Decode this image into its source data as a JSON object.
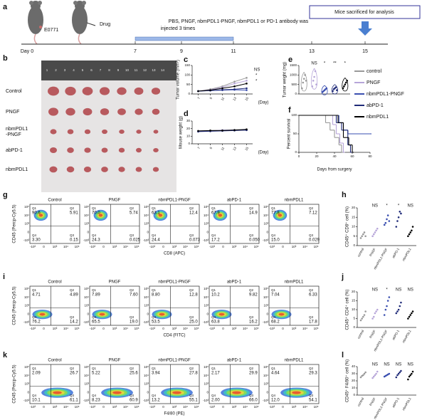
{
  "panel_letters": [
    "a",
    "b",
    "c",
    "d",
    "e",
    "f",
    "g",
    "h",
    "i",
    "j",
    "k",
    "l"
  ],
  "timeline": {
    "cell_line": "E0771",
    "drug": "Drug",
    "day0": "Day 0",
    "days": [
      7,
      9,
      11,
      13,
      15
    ],
    "treatment": [
      "PBS, PNGF, nbmPDL1-PNGF, nbmPDL1 or PD-1 antibody was",
      "injected 3 times"
    ],
    "endpoint": "Mice sacrificed for analysis"
  },
  "photo": {
    "ruler": [
      1,
      2,
      3,
      4,
      5,
      6,
      7,
      8,
      9,
      10,
      11,
      12,
      13,
      14
    ],
    "rows": [
      [
        "Control"
      ],
      [
        "PNGF"
      ],
      [
        "nbmPDL1",
        "-PNGF"
      ],
      [
        "abPD-1"
      ],
      [
        "nbmPDL1"
      ]
    ]
  },
  "chart_data": [
    {
      "type": "line",
      "ylabel": "Tumor volume (mm³)",
      "xlabel": "(Day)",
      "x": [
        7,
        9,
        11,
        13,
        15
      ],
      "xlim": [
        6,
        16
      ],
      "xticks": [
        7,
        9,
        11,
        13,
        15
      ],
      "ylim": [
        0,
        150
      ],
      "yticks": [
        0,
        50,
        100,
        150
      ],
      "annotations": [
        "NS",
        "*",
        "*"
      ],
      "series": [
        {
          "name": "control",
          "color": "#999999",
          "values": [
            15,
            25,
            40,
            65,
            85
          ]
        },
        {
          "name": "PNGF",
          "color": "#b7a6d9",
          "values": [
            15,
            22,
            35,
            55,
            70
          ]
        },
        {
          "name": "nbmPDL1-PNGF",
          "color": "#3a4fb0",
          "values": [
            15,
            18,
            20,
            22,
            20
          ]
        },
        {
          "name": "abPD-1",
          "color": "#1f2a78",
          "values": [
            15,
            18,
            22,
            25,
            30
          ]
        },
        {
          "name": "nbmPDL1",
          "color": "#000000",
          "values": [
            15,
            20,
            30,
            40,
            55
          ]
        }
      ]
    },
    {
      "type": "line",
      "ylabel": "Mouse weight (g)",
      "xlabel": "(Day)",
      "x": [
        7,
        9,
        11,
        13,
        15
      ],
      "xlim": [
        6,
        16
      ],
      "xticks": [
        7,
        9,
        11,
        13,
        15
      ],
      "ylim": [
        0,
        30
      ],
      "yticks": [
        0,
        10,
        20,
        30
      ],
      "series": [
        {
          "color": "#999999",
          "values": [
            17,
            17.5,
            18,
            18.5,
            19
          ]
        },
        {
          "color": "#b7a6d9",
          "values": [
            17,
            17,
            18,
            18,
            18.5
          ]
        },
        {
          "color": "#3a4fb0",
          "values": [
            16.5,
            17,
            17.5,
            18,
            18
          ]
        },
        {
          "color": "#1f2a78",
          "values": [
            16,
            16.5,
            17,
            17.5,
            18
          ]
        },
        {
          "color": "#000000",
          "values": [
            17,
            17.5,
            17.5,
            18,
            19
          ]
        }
      ]
    },
    {
      "type": "violin",
      "ylabel": "Tumor weight (mg)",
      "ylim": [
        0,
        1500
      ],
      "yticks": [
        0,
        500,
        1000,
        1500
      ],
      "annotations": [
        null,
        "NS",
        "*",
        "**",
        "*"
      ],
      "series": [
        {
          "color": "#999999",
          "values": [
            300,
            600,
            800,
            1000,
            700
          ]
        },
        {
          "color": "#b7a6d9",
          "values": [
            400,
            700,
            900,
            1200,
            500
          ]
        },
        {
          "color": "#3a4fb0",
          "values": [
            100,
            150,
            200,
            250,
            300
          ]
        },
        {
          "color": "#1f2a78",
          "values": [
            150,
            250,
            300,
            350,
            200
          ]
        },
        {
          "color": "#000000",
          "values": [
            300,
            400,
            500,
            600,
            700
          ]
        }
      ]
    },
    {
      "type": "step",
      "ylabel": "Percent survival",
      "xlabel": "Days from surgery",
      "xlim": [
        0,
        80
      ],
      "xticks": [
        0,
        20,
        40,
        60,
        80
      ],
      "ylim": [
        0,
        100
      ],
      "yticks": [
        0,
        50,
        100
      ],
      "series": [
        {
          "color": "#999999",
          "x": [
            0,
            30,
            35,
            40,
            45,
            48
          ],
          "values": [
            100,
            80,
            60,
            40,
            20,
            0
          ]
        },
        {
          "color": "#b7a6d9",
          "x": [
            0,
            38,
            42,
            46,
            50
          ],
          "values": [
            100,
            75,
            50,
            25,
            0
          ]
        },
        {
          "color": "#3a4fb0",
          "x": [
            0,
            45,
            50,
            55,
            80
          ],
          "values": [
            100,
            80,
            60,
            50,
            50
          ]
        },
        {
          "color": "#1f2a78",
          "x": [
            0,
            42,
            48,
            55,
            58
          ],
          "values": [
            100,
            80,
            60,
            20,
            0
          ]
        },
        {
          "color": "#000000",
          "x": [
            0,
            44,
            50,
            56,
            60
          ],
          "values": [
            100,
            80,
            40,
            20,
            0
          ]
        }
      ]
    },
    {
      "type": "strip",
      "ylabel": "CD45⁺ CD8⁺ cell (%)",
      "ylim": [
        0,
        20
      ],
      "yticks": [
        0,
        5,
        10,
        15,
        20
      ],
      "categories": [
        "control",
        "PNGF",
        "nbmPDL1-PNGF",
        "abPD-1",
        "nbmPDL1"
      ],
      "annotations": [
        null,
        "NS",
        "*",
        "*",
        "NS"
      ],
      "series": [
        {
          "color": "#999999",
          "values": [
            4,
            5,
            6,
            7,
            5
          ]
        },
        {
          "color": "#b7a6d9",
          "values": [
            5,
            6,
            7,
            8,
            9
          ]
        },
        {
          "color": "#3a4fb0",
          "values": [
            11,
            12,
            14,
            16,
            13
          ]
        },
        {
          "color": "#1f2a78",
          "values": [
            10,
            13,
            15,
            18,
            17
          ]
        },
        {
          "color": "#000000",
          "values": [
            5,
            6,
            7,
            8,
            10
          ]
        }
      ]
    },
    {
      "type": "strip",
      "ylabel": "CD45⁺ CD4⁺ cell (%)",
      "ylim": [
        0,
        20
      ],
      "yticks": [
        0,
        5,
        10,
        15,
        20
      ],
      "categories": [
        "control",
        "PNGF",
        "nbmPDL1-PNGF",
        "abPD-1",
        "nbmPDL1"
      ],
      "annotations": [
        null,
        "NS",
        "*",
        "NS",
        "NS"
      ],
      "series": [
        {
          "color": "#999999",
          "values": [
            4,
            5,
            6,
            7,
            9
          ]
        },
        {
          "color": "#b7a6d9",
          "values": [
            5,
            6,
            8,
            9,
            10
          ]
        },
        {
          "color": "#3a4fb0",
          "values": [
            7,
            10,
            12,
            15,
            17
          ]
        },
        {
          "color": "#1f2a78",
          "values": [
            8,
            9,
            10,
            12,
            14
          ]
        },
        {
          "color": "#000000",
          "values": [
            5,
            6,
            7,
            8,
            9
          ]
        }
      ]
    },
    {
      "type": "strip",
      "ylabel": "CD45⁺ F4/80⁺ cell (%)",
      "ylim": [
        0,
        40
      ],
      "yticks": [
        0,
        10,
        20,
        30,
        40
      ],
      "categories": [
        "control",
        "PNGF",
        "nbmPDL1-PNGF",
        "abPD-1",
        "nbmPDL1"
      ],
      "annotations": [
        null,
        "NS",
        "NS",
        "NS",
        "NS"
      ],
      "series": [
        {
          "color": "#999999",
          "values": [
            25,
            27,
            28,
            30,
            32
          ]
        },
        {
          "color": "#b7a6d9",
          "values": [
            24,
            26,
            28,
            30,
            33
          ]
        },
        {
          "color": "#3a4fb0",
          "values": [
            26,
            27,
            28,
            29,
            30
          ]
        },
        {
          "color": "#1f2a78",
          "values": [
            25,
            28,
            30,
            32,
            34
          ]
        },
        {
          "color": "#000000",
          "values": [
            22,
            26,
            28,
            30,
            33
          ]
        }
      ]
    }
  ],
  "flow_ticks": {
    "y": [
      "10⁵",
      "10⁴",
      "10³",
      "0",
      "-10³"
    ],
    "x": [
      "-10³",
      "0",
      "10³",
      "10⁴",
      "10⁵"
    ]
  },
  "flow": [
    {
      "ylabel": "CD45 (Percp-Cy5.5)",
      "xlabel": "CD8 (APC)",
      "plots": [
        {
          "title": "Control",
          "quadrants": [
            {
              "label": "Q1",
              "value": "90.6"
            },
            {
              "label": "Q2",
              "value": "5.91"
            },
            {
              "label": "Q4",
              "value": "3.30"
            },
            {
              "label": "Q3",
              "value": "0.15"
            }
          ]
        },
        {
          "title": "PNGF",
          "quadrants": [
            {
              "label": "Q1",
              "value": "70.0"
            },
            {
              "label": "Q2",
              "value": "5.74"
            },
            {
              "label": "Q4",
              "value": "24.3"
            },
            {
              "label": "Q3",
              "value": "0.025"
            }
          ]
        },
        {
          "title": "nbmPDL1-PNGF",
          "quadrants": [
            {
              "label": "Q1",
              "value": "63.1"
            },
            {
              "label": "Q2",
              "value": "12.4"
            },
            {
              "label": "Q4",
              "value": "24.4"
            },
            {
              "label": "Q3",
              "value": "0.073"
            }
          ]
        },
        {
          "title": "abPD-1",
          "quadrants": [
            {
              "label": "Q1",
              "value": "67.9"
            },
            {
              "label": "Q2",
              "value": "14.9"
            },
            {
              "label": "Q4",
              "value": "17.2"
            },
            {
              "label": "Q3",
              "value": "0.050"
            }
          ]
        },
        {
          "title": "nbmPDL1",
          "quadrants": [
            {
              "label": "Q1",
              "value": "77.8"
            },
            {
              "label": "Q2",
              "value": "7.12"
            },
            {
              "label": "Q4",
              "value": "15.0"
            },
            {
              "label": "Q3",
              "value": "0.029"
            }
          ]
        }
      ]
    },
    {
      "ylabel": "CD45 (Percp-Cy5.5)",
      "xlabel": "CD4 (FITC)",
      "plots": [
        {
          "title": "Control",
          "quadrants": [
            {
              "label": "Q1",
              "value": "4.71"
            },
            {
              "label": "Q2",
              "value": "4.89"
            },
            {
              "label": "Q4",
              "value": "76.2"
            },
            {
              "label": "Q3",
              "value": "14.2"
            }
          ]
        },
        {
          "title": "PNGF",
          "quadrants": [
            {
              "label": "Q1",
              "value": "7.89"
            },
            {
              "label": "Q2",
              "value": "7.60"
            },
            {
              "label": "Q4",
              "value": "65.5"
            },
            {
              "label": "Q3",
              "value": "19.0"
            }
          ]
        },
        {
          "title": "nbmPDL1-PNGF",
          "quadrants": [
            {
              "label": "Q1",
              "value": "8.80"
            },
            {
              "label": "Q2",
              "value": "12.8"
            },
            {
              "label": "Q4",
              "value": "53.5"
            },
            {
              "label": "Q3",
              "value": "25.0"
            }
          ]
        },
        {
          "title": "abPD-1",
          "quadrants": [
            {
              "label": "Q1",
              "value": "10.2"
            },
            {
              "label": "Q2",
              "value": "9.82"
            },
            {
              "label": "Q4",
              "value": "63.8"
            },
            {
              "label": "Q3",
              "value": "16.2"
            }
          ]
        },
        {
          "title": "nbmPDL1",
          "quadrants": [
            {
              "label": "Q1",
              "value": "7.04"
            },
            {
              "label": "Q2",
              "value": "6.33"
            },
            {
              "label": "Q4",
              "value": "68.2"
            },
            {
              "label": "Q3",
              "value": "17.8"
            }
          ]
        }
      ]
    },
    {
      "ylabel": "CD45 (Percp-Cy5.5)",
      "xlabel": "F4/80 (PE)",
      "plots": [
        {
          "title": "Control",
          "quadrants": [
            {
              "label": "Q1",
              "value": "2.09"
            },
            {
              "label": "Q2",
              "value": "26.7"
            },
            {
              "label": "Q4",
              "value": "10.1"
            },
            {
              "label": "Q3",
              "value": "61.1"
            }
          ]
        },
        {
          "title": "PNGF",
          "quadrants": [
            {
              "label": "Q1",
              "value": "5.22"
            },
            {
              "label": "Q2",
              "value": "25.6"
            },
            {
              "label": "Q4",
              "value": "8.23"
            },
            {
              "label": "Q3",
              "value": "60.9"
            }
          ]
        },
        {
          "title": "nbmPDL1-PNGF",
          "quadrants": [
            {
              "label": "Q1",
              "value": "3.94"
            },
            {
              "label": "Q2",
              "value": "27.8"
            },
            {
              "label": "Q4",
              "value": "13.2"
            },
            {
              "label": "Q3",
              "value": "55.1"
            }
          ]
        },
        {
          "title": "abPD-1",
          "quadrants": [
            {
              "label": "Q1",
              "value": "2.17"
            },
            {
              "label": "Q2",
              "value": "29.9"
            },
            {
              "label": "Q4",
              "value": "2.00"
            },
            {
              "label": "Q3",
              "value": "66.0"
            }
          ]
        },
        {
          "title": "nbmPDL1",
          "quadrants": [
            {
              "label": "Q1",
              "value": "4.64"
            },
            {
              "label": "Q2",
              "value": "29.3"
            },
            {
              "label": "Q4",
              "value": "12.0"
            },
            {
              "label": "Q3",
              "value": "54.1"
            }
          ]
        }
      ]
    }
  ]
}
